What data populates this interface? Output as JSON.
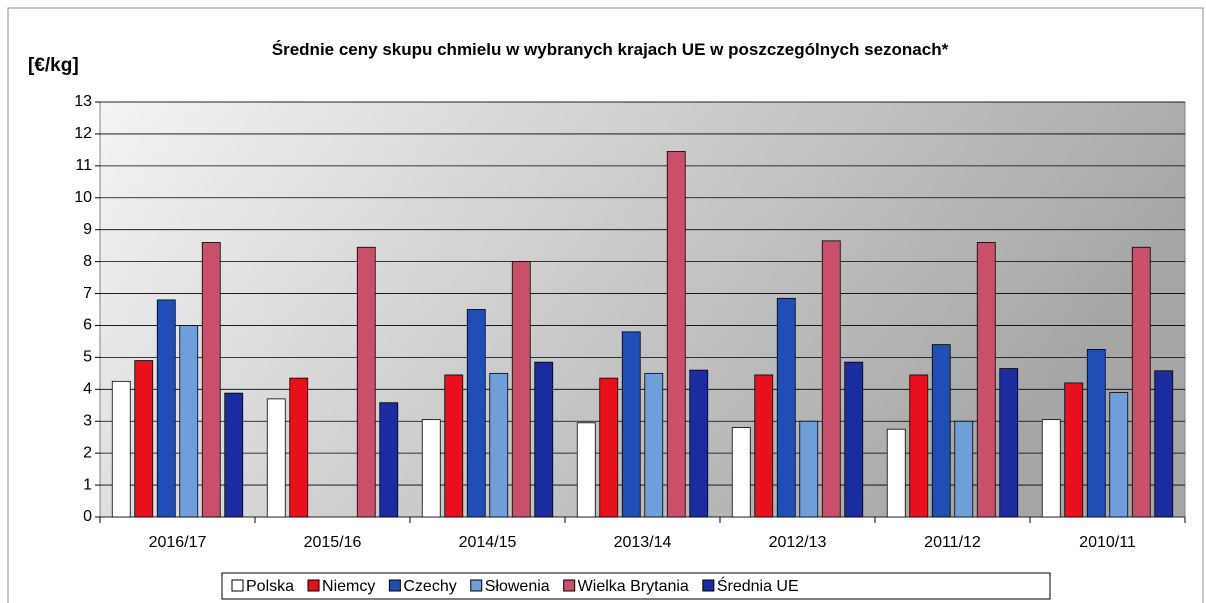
{
  "chart_data": {
    "type": "bar",
    "title": "Średnie ceny skupu chmielu w wybranych krajach UE w poszczególnych sezonach*",
    "y_label": "[€/kg]",
    "categories": [
      "2016/17",
      "2015/16",
      "2014/15",
      "2013/14",
      "2012/13",
      "2011/12",
      "2010/11"
    ],
    "series": [
      {
        "name": "Polska",
        "color": "#ffffff",
        "values": [
          4.25,
          3.7,
          3.05,
          2.95,
          2.8,
          2.75,
          3.05
        ]
      },
      {
        "name": "Niemcy",
        "color": "#e8101c",
        "values": [
          4.9,
          4.35,
          4.45,
          4.35,
          4.45,
          4.45,
          4.2
        ]
      },
      {
        "name": "Czechy",
        "color": "#1f4fb4",
        "values": [
          6.8,
          null,
          6.5,
          5.8,
          6.85,
          5.4,
          5.25
        ]
      },
      {
        "name": "Słowenia",
        "color": "#6f9fd8",
        "values": [
          6.0,
          null,
          4.5,
          4.5,
          3.0,
          3.0,
          3.9
        ]
      },
      {
        "name": "Wielka Brytania",
        "color": "#c8506a",
        "values": [
          8.6,
          8.45,
          8.0,
          11.45,
          8.65,
          8.6,
          8.45
        ]
      },
      {
        "name": "Średnia UE",
        "color": "#1a2ca0",
        "values": [
          3.88,
          3.58,
          4.85,
          4.6,
          4.85,
          4.65,
          4.58
        ]
      }
    ],
    "ylim": [
      0,
      13
    ],
    "yticks": [
      0,
      1,
      2,
      3,
      4,
      5,
      6,
      7,
      8,
      9,
      10,
      11,
      12,
      13
    ],
    "grid": true
  }
}
